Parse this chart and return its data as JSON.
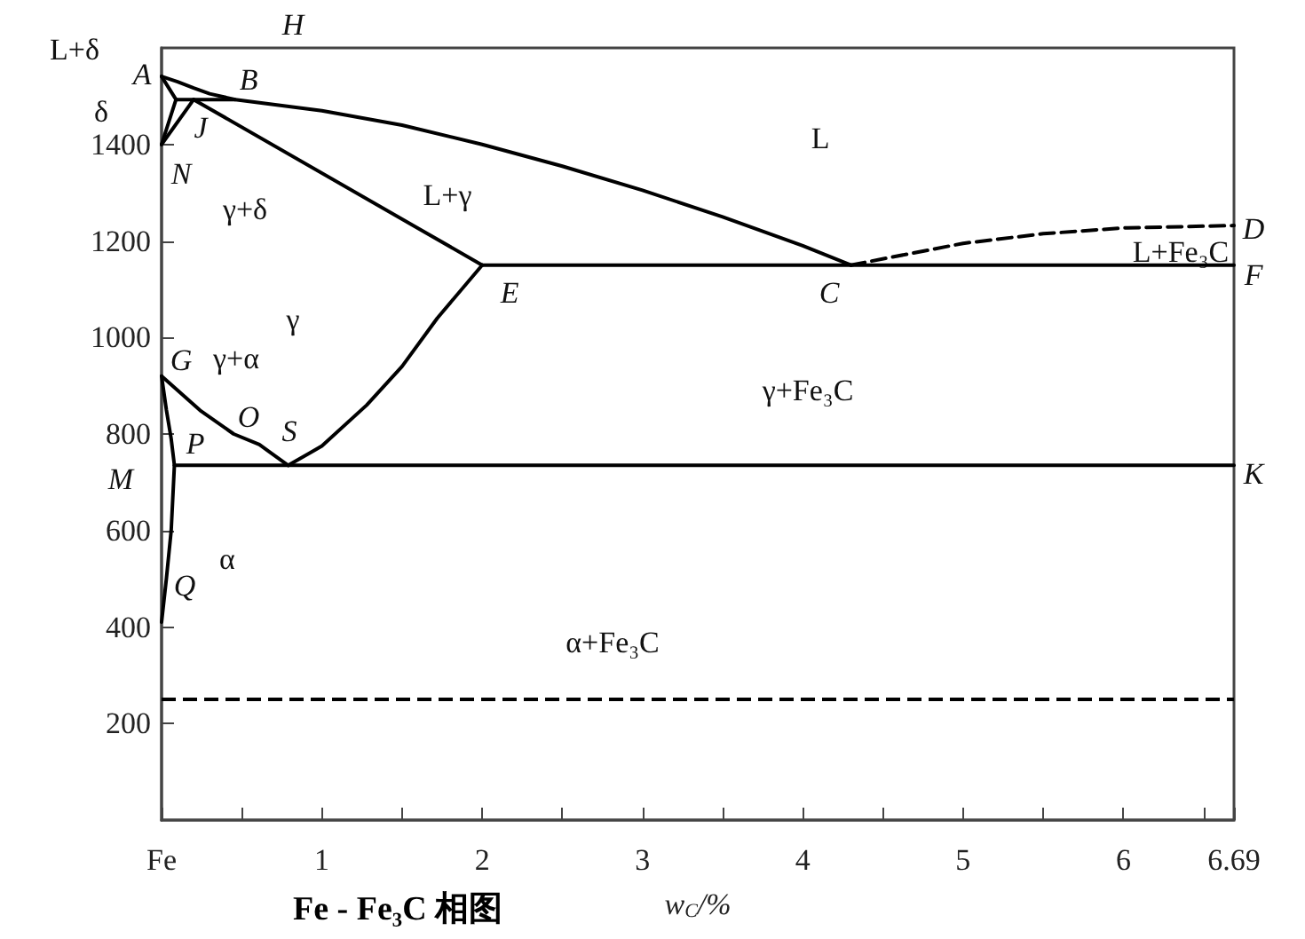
{
  "chart_data": {
    "type": "line",
    "title": "Fe - Fe₃C 相图",
    "xlabel": "w$_{C}$/%",
    "xlim": [
      0,
      6.69
    ],
    "ylim": [
      0,
      1600
    ],
    "xticks": [
      {
        "value": 0,
        "label": "Fe"
      },
      {
        "value": 0.5,
        "label": null
      },
      1,
      {
        "value": 1.5,
        "label": null
      },
      2,
      {
        "value": 2.5,
        "label": null
      },
      3,
      {
        "value": 3.5,
        "label": null
      },
      4,
      {
        "value": 4.5,
        "label": null
      },
      5,
      {
        "value": 5.5,
        "label": null
      },
      6,
      {
        "value": 6.5,
        "label": null
      },
      6.69
    ],
    "yticks": [
      200,
      400,
      600,
      800,
      1000,
      1200,
      1400
    ],
    "grid": false,
    "marker": "none",
    "line_style": "solid",
    "series": [
      {
        "color": "#000000",
        "x": [
          0,
          0.1,
          0.2,
          0.3,
          0.46,
          1.0,
          1.5,
          2.0,
          2.5,
          3.0,
          3.5,
          4.0,
          4.3
        ],
        "values": [
          1541,
          1530,
          1517,
          1505,
          1493,
          1470,
          1440,
          1400,
          1355,
          1305,
          1250,
          1190,
          1150
        ]
      },
      {
        "color": "#000000",
        "x": [
          0,
          0.09
        ],
        "values": [
          1541,
          1493
        ]
      },
      {
        "color": "#000000",
        "x": [
          0.09,
          0.46
        ],
        "values": [
          1493,
          1493
        ]
      },
      {
        "color": "#000000",
        "x": [
          0.09,
          0
        ],
        "values": [
          1493,
          1400
        ]
      },
      {
        "color": "#000000",
        "x": [
          0.2,
          0
        ],
        "values": [
          1493,
          1400
        ]
      },
      {
        "color": "#000000",
        "x": [
          0.2,
          2.0
        ],
        "values": [
          1493,
          1150
        ]
      },
      {
        "color": "#000000",
        "x": [
          2.0,
          6.69
        ],
        "values": [
          1150,
          1150
        ]
      },
      {
        "color": "#000000",
        "line_style": "dashed",
        "x": [
          4.3,
          5.0,
          5.5,
          6.0,
          6.69
        ],
        "values": [
          1150,
          1195,
          1215,
          1227,
          1232
        ]
      },
      {
        "color": "#000000",
        "x": [
          0.79,
          1.0,
          1.28,
          1.5,
          1.72,
          2.0
        ],
        "values": [
          735,
          775,
          860,
          940,
          1040,
          1150
        ]
      },
      {
        "color": "#000000",
        "x": [
          0,
          0.24,
          0.45,
          0.61,
          0.79
        ],
        "values": [
          920,
          849,
          800,
          778,
          735
        ]
      },
      {
        "color": "#000000",
        "x": [
          0,
          0.03,
          0.06,
          0.08,
          0.06,
          0.03,
          0
        ],
        "values": [
          920,
          850,
          790,
          735,
          600,
          500,
          410
        ]
      },
      {
        "color": "#000000",
        "x": [
          0.08,
          6.69
        ],
        "values": [
          735,
          735
        ]
      }
    ],
    "ref_lines": [
      {
        "axis": "y",
        "value": 250,
        "line_style": "dashed",
        "color": "#000000"
      }
    ],
    "annotations": [
      "L+δ",
      "H",
      "A",
      "B",
      "δ",
      "J",
      "N",
      "γ+δ",
      "L",
      "L+γ",
      "D",
      "L+Fe₃C",
      "F",
      "E",
      "C",
      "γ",
      "G",
      "γ+α",
      "γ+Fe₃C",
      "O",
      "S",
      "P",
      "M",
      "K",
      "α",
      "Q",
      "α+Fe₃C"
    ]
  }
}
